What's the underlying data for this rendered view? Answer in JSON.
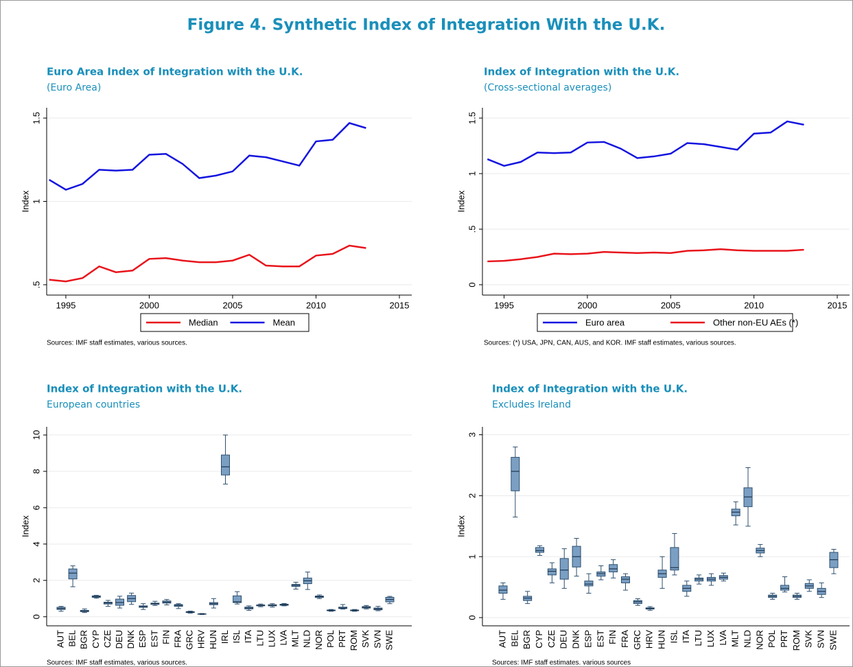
{
  "title": "Figure 4. Synthetic Index of Integration With the U.K.",
  "chart_data": [
    {
      "type": "line",
      "title": "Euro Area Index of Integration with the U.K.",
      "subtitle": "(Euro Area)",
      "y_label": "Index",
      "source": "Sources: IMF staff estimates, various sources.",
      "x": [
        1994,
        1995,
        1996,
        1997,
        1998,
        1999,
        2000,
        2001,
        2002,
        2003,
        2004,
        2005,
        2006,
        2007,
        2008,
        2009,
        2010,
        2011,
        2012,
        2013
      ],
      "xlim": [
        1993.85,
        2015.74
      ],
      "xticks": [
        1995,
        2000,
        2005,
        2010,
        2015
      ],
      "ylim": [
        0.438,
        1.562
      ],
      "yticks": [
        {
          "value": 0.5,
          "label": ".5"
        },
        1,
        1.5
      ],
      "grid": true,
      "series": [
        {
          "name": "Median",
          "color": "#e8141b",
          "values": [
            0.53,
            0.52,
            0.54,
            0.61,
            0.575,
            0.585,
            0.655,
            0.66,
            0.645,
            0.635,
            0.635,
            0.645,
            0.68,
            0.615,
            0.61,
            0.61,
            0.675,
            0.685,
            0.735,
            0.72
          ]
        },
        {
          "name": "Mean",
          "color": "#1414e0",
          "values": [
            1.13,
            1.07,
            1.105,
            1.19,
            1.185,
            1.19,
            1.28,
            1.285,
            1.225,
            1.14,
            1.155,
            1.18,
            1.275,
            1.265,
            1.24,
            1.215,
            1.36,
            1.37,
            1.47,
            1.44
          ]
        }
      ]
    },
    {
      "type": "line",
      "title": "Index of Integration with the U.K.",
      "subtitle": "(Cross-sectional averages)",
      "y_label": "Index",
      "source": "Sources: (*) USA, JPN, CAN, AUS, and KOR. IMF staff estimates, various sources.",
      "x": [
        1994,
        1995,
        1996,
        1997,
        1998,
        1999,
        2000,
        2001,
        2002,
        2003,
        2004,
        2005,
        2006,
        2007,
        2008,
        2009,
        2010,
        2011,
        2012,
        2013
      ],
      "xlim": [
        1993.7,
        2015.74
      ],
      "xticks": [
        1995,
        2000,
        2005,
        2010,
        2015
      ],
      "ylim": [
        -0.093,
        1.593
      ],
      "yticks": [
        0,
        {
          "value": 0.5,
          "label": ".5"
        },
        1,
        1.5
      ],
      "grid": true,
      "series": [
        {
          "name": "Euro area",
          "color": "#1414e0",
          "values": [
            1.13,
            1.07,
            1.105,
            1.19,
            1.185,
            1.19,
            1.28,
            1.285,
            1.225,
            1.14,
            1.155,
            1.18,
            1.275,
            1.265,
            1.24,
            1.215,
            1.36,
            1.37,
            1.47,
            1.44
          ]
        },
        {
          "name": "Other non-EU AEs (*)",
          "color": "#e8141b",
          "values": [
            0.21,
            0.215,
            0.23,
            0.25,
            0.28,
            0.275,
            0.28,
            0.295,
            0.29,
            0.285,
            0.29,
            0.285,
            0.305,
            0.31,
            0.32,
            0.31,
            0.305,
            0.305,
            0.305,
            0.315
          ]
        }
      ]
    },
    {
      "type": "box",
      "title": "Index of Integration with the U.K.",
      "subtitle": "European countries",
      "y_label": "Index",
      "source": "Sources:  IMF staff estimates, various sources.",
      "categories": [
        "AUT",
        "BEL",
        "BGR",
        "CYP",
        "CZE",
        "DEU",
        "DNK",
        "ESP",
        "EST",
        "FIN",
        "FRA",
        "GRC",
        "HRV",
        "HUN",
        "IRL",
        "ISL",
        "ITA",
        "LTU",
        "LUX",
        "LVA",
        "MLT",
        "NLD",
        "NOR",
        "POL",
        "PRT",
        "ROM",
        "SVK",
        "SVN",
        "SWE"
      ],
      "low": [
        0.3,
        1.65,
        0.23,
        1.02,
        0.57,
        0.48,
        0.68,
        0.4,
        0.62,
        0.65,
        0.45,
        0.2,
        0.12,
        0.48,
        7.3,
        0.7,
        0.35,
        0.55,
        0.53,
        0.6,
        1.52,
        1.5,
        1.0,
        0.3,
        0.42,
        0.3,
        0.43,
        0.33,
        0.72
      ],
      "q1": [
        0.4,
        2.08,
        0.28,
        1.07,
        0.7,
        0.63,
        0.83,
        0.52,
        0.68,
        0.75,
        0.57,
        0.23,
        0.14,
        0.66,
        7.8,
        0.78,
        0.43,
        0.6,
        0.6,
        0.63,
        1.67,
        1.82,
        1.06,
        0.33,
        0.45,
        0.33,
        0.48,
        0.38,
        0.82
      ],
      "median": [
        0.45,
        2.4,
        0.32,
        1.1,
        0.76,
        0.78,
        1.0,
        0.55,
        0.72,
        0.8,
        0.63,
        0.26,
        0.15,
        0.72,
        8.25,
        0.82,
        0.48,
        0.63,
        0.63,
        0.66,
        1.73,
        1.98,
        1.1,
        0.35,
        0.48,
        0.35,
        0.52,
        0.43,
        0.95
      ],
      "q3": [
        0.52,
        2.63,
        0.35,
        1.15,
        0.8,
        0.97,
        1.17,
        0.6,
        0.75,
        0.87,
        0.67,
        0.28,
        0.16,
        0.78,
        8.9,
        1.15,
        0.53,
        0.65,
        0.66,
        0.69,
        1.78,
        2.13,
        1.14,
        0.37,
        0.53,
        0.37,
        0.56,
        0.48,
        1.07
      ],
      "high": [
        0.57,
        2.8,
        0.43,
        1.18,
        0.9,
        1.13,
        1.3,
        0.72,
        0.85,
        0.95,
        0.72,
        0.31,
        0.18,
        1.0,
        10.0,
        1.38,
        0.6,
        0.7,
        0.72,
        0.73,
        1.9,
        2.46,
        1.2,
        0.4,
        0.67,
        0.4,
        0.62,
        0.57,
        1.12
      ],
      "color": "#7b9fc3",
      "ylim": [
        -0.5,
        10.45
      ],
      "yticks": [
        0,
        2,
        4,
        6,
        8,
        10
      ],
      "grid": true
    },
    {
      "type": "box",
      "title": "Index of Integration with the U.K.",
      "subtitle": "Excludes Ireland",
      "y_label": "Index",
      "source": "Sources:  IMF staff estimates. various sources",
      "categories": [
        "AUT",
        "BEL",
        "BGR",
        "CYP",
        "CZE",
        "DEU",
        "DNK",
        "ESP",
        "EST",
        "FIN",
        "FRA",
        "GRC",
        "HRV",
        "HUN",
        "ISL",
        "ITA",
        "LTU",
        "LUX",
        "LVA",
        "MLT",
        "NLD",
        "NOR",
        "POL",
        "PRT",
        "ROM",
        "SVK",
        "SVN",
        "SWE"
      ],
      "low": [
        0.3,
        1.65,
        0.23,
        1.02,
        0.57,
        0.48,
        0.68,
        0.4,
        0.62,
        0.65,
        0.45,
        0.2,
        0.12,
        0.48,
        0.7,
        0.35,
        0.55,
        0.53,
        0.6,
        1.52,
        1.5,
        1.0,
        0.3,
        0.42,
        0.3,
        0.43,
        0.33,
        0.72
      ],
      "q1": [
        0.4,
        2.08,
        0.28,
        1.07,
        0.7,
        0.63,
        0.83,
        0.52,
        0.68,
        0.75,
        0.57,
        0.23,
        0.14,
        0.66,
        0.78,
        0.43,
        0.6,
        0.6,
        0.63,
        1.67,
        1.82,
        1.06,
        0.33,
        0.45,
        0.33,
        0.48,
        0.38,
        0.82
      ],
      "median": [
        0.45,
        2.4,
        0.32,
        1.1,
        0.76,
        0.78,
        1.0,
        0.55,
        0.72,
        0.8,
        0.63,
        0.26,
        0.15,
        0.72,
        0.82,
        0.48,
        0.63,
        0.63,
        0.66,
        1.73,
        1.98,
        1.1,
        0.35,
        0.48,
        0.35,
        0.52,
        0.43,
        0.95
      ],
      "q3": [
        0.52,
        2.63,
        0.35,
        1.15,
        0.8,
        0.97,
        1.17,
        0.6,
        0.75,
        0.87,
        0.67,
        0.28,
        0.16,
        0.78,
        1.15,
        0.53,
        0.65,
        0.66,
        0.69,
        1.78,
        2.13,
        1.14,
        0.37,
        0.53,
        0.37,
        0.56,
        0.48,
        1.07
      ],
      "high": [
        0.57,
        2.8,
        0.43,
        1.18,
        0.9,
        1.13,
        1.3,
        0.72,
        0.85,
        0.95,
        0.72,
        0.31,
        0.18,
        1.0,
        1.38,
        0.6,
        0.7,
        0.72,
        0.73,
        1.9,
        2.46,
        1.2,
        0.4,
        0.67,
        0.4,
        0.62,
        0.57,
        1.12
      ],
      "color": "#7b9fc3",
      "ylim": [
        -0.135,
        3.13
      ],
      "yticks": [
        0,
        1,
        2,
        3
      ],
      "grid": true
    }
  ]
}
